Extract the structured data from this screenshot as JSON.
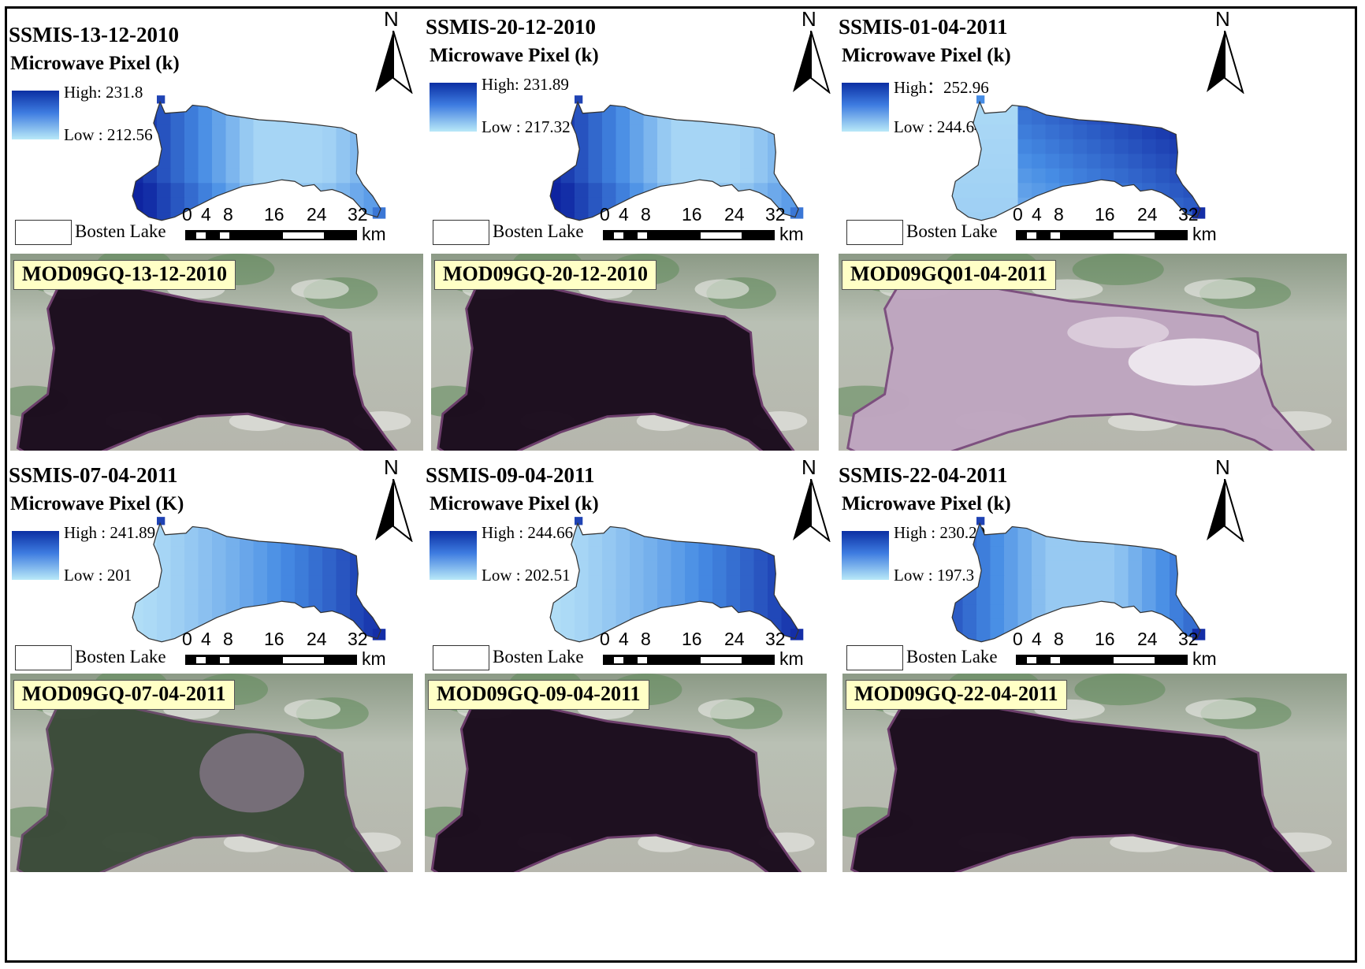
{
  "panels": [
    {
      "title": "SSMIS-13-12-2010",
      "subtitle": "Microwave Pixel (k)",
      "high": "High: 231.8",
      "low": "Low : 212.56",
      "pattern": "a"
    },
    {
      "title": "SSMIS-20-12-2010",
      "subtitle": "Microwave Pixel (k)",
      "high": "High: 231.89",
      "low": "Low : 217.32",
      "pattern": "a"
    },
    {
      "title": "SSMIS-01-04-2011",
      "subtitle": "Microwave Pixel (k)",
      "high": "High：252.96",
      "low": "Low : 244.64",
      "pattern": "b"
    },
    {
      "title": "SSMIS-07-04-2011",
      "subtitle": "Microwave Pixel (K)",
      "high": "High : 241.89",
      "low": "Low : 201",
      "pattern": "c"
    },
    {
      "title": "SSMIS-09-04-2011",
      "subtitle": "Microwave Pixel (k)",
      "high": "High : 244.66",
      "low": "Low : 202.51",
      "pattern": "c"
    },
    {
      "title": "SSMIS-22-04-2011",
      "subtitle": "Microwave Pixel (k)",
      "high": "High : 230.29",
      "low": "Low : 197.3",
      "pattern": "d"
    }
  ],
  "legend": {
    "lake_label": "Bosten Lake",
    "north": "N",
    "scale_ticks": [
      "0",
      "4",
      "8",
      "16",
      "24",
      "32"
    ],
    "scale_unit": "km"
  },
  "satellite": [
    {
      "label": "MOD09GQ-13-12-2010",
      "state": "dark"
    },
    {
      "label": "MOD09GQ-20-12-2010",
      "state": "dark"
    },
    {
      "label": "MOD09GQ01-04-2011",
      "state": "ice"
    },
    {
      "label": "MOD09GQ-07-04-2011",
      "state": "partial"
    },
    {
      "label": "MOD09GQ-09-04-2011",
      "state": "dark"
    },
    {
      "label": "MOD09GQ-22-04-2011",
      "state": "dark"
    }
  ]
}
